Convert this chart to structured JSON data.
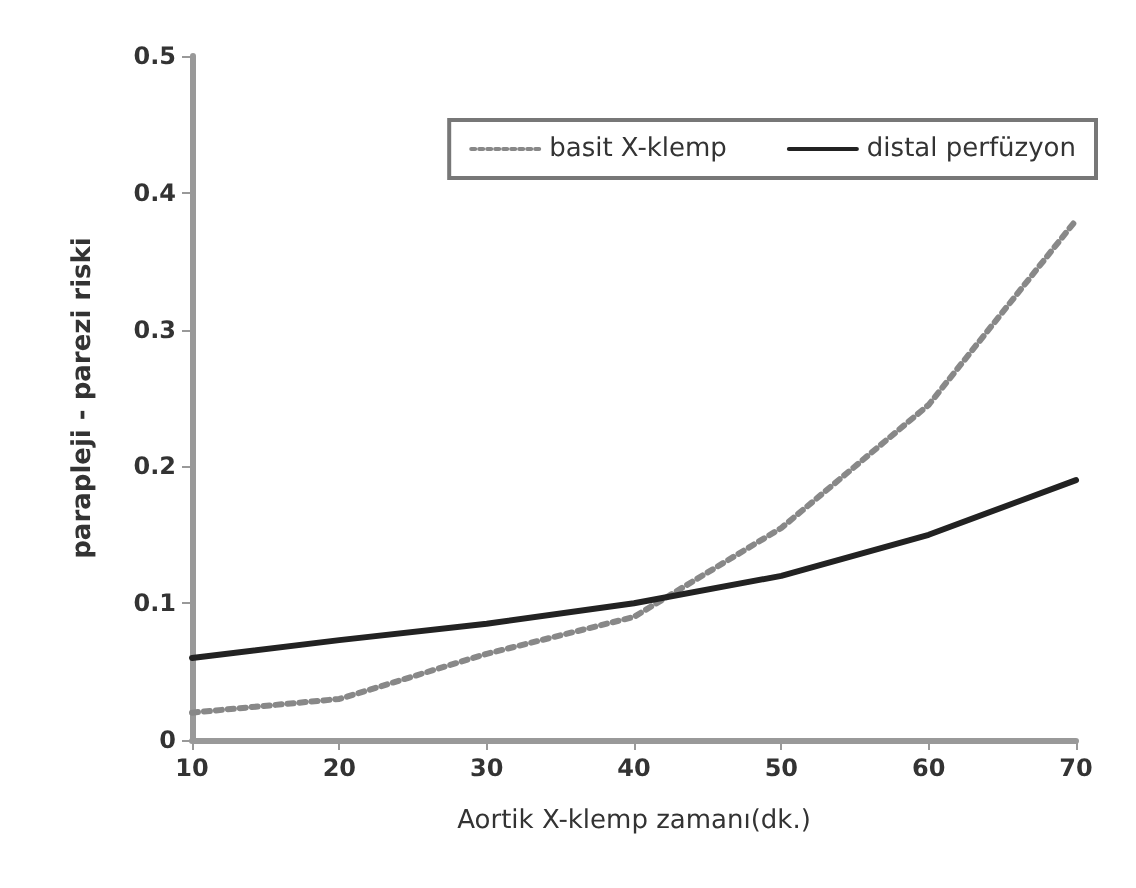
{
  "chart_data": {
    "type": "line",
    "xlabel": "Aortik X-klemp zamanı(dk.)",
    "ylabel": "parapleji - parezi riski",
    "x": [
      10,
      20,
      30,
      40,
      50,
      60,
      70
    ],
    "series": [
      {
        "name": "basit X-klemp",
        "color": "#888888",
        "line_style": "dotted",
        "values": [
          0.02,
          0.03,
          0.063,
          0.09,
          0.155,
          0.245,
          0.38
        ]
      },
      {
        "name": "distal perfüzyon",
        "color": "#222222",
        "line_style": "solid",
        "values": [
          0.06,
          0.073,
          0.085,
          0.1,
          0.12,
          0.15,
          0.19
        ]
      }
    ],
    "xlim": [
      10,
      70
    ],
    "xticks": [
      10,
      20,
      30,
      40,
      50,
      60,
      70
    ],
    "ylim": [
      0,
      0.5
    ],
    "yticks": [
      0,
      0.1,
      0.2,
      0.3,
      0.4,
      0.5
    ],
    "grid": false,
    "legend": "top right",
    "marker": "none"
  }
}
